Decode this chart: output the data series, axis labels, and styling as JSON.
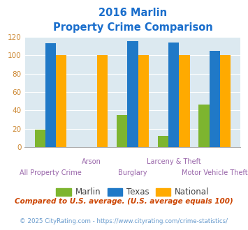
{
  "title_line1": "2016 Marlin",
  "title_line2": "Property Crime Comparison",
  "categories": [
    "All Property Crime",
    "Arson",
    "Burglary",
    "Larceny & Theft",
    "Motor Vehicle Theft"
  ],
  "marlin": [
    19,
    0,
    35,
    12,
    46
  ],
  "texas": [
    113,
    0,
    115,
    114,
    105
  ],
  "national": [
    100,
    100,
    100,
    100,
    100
  ],
  "marlin_color": "#7db52f",
  "texas_color": "#2079c7",
  "national_color": "#ffaa00",
  "title_color": "#1a6ecc",
  "xlabel_color_top": "#9966aa",
  "xlabel_color_bot": "#9966aa",
  "ytick_color": "#cc8833",
  "bg_color": "#dce9f0",
  "ylim": [
    0,
    120
  ],
  "yticks": [
    0,
    20,
    40,
    60,
    80,
    100,
    120
  ],
  "footnote1": "Compared to U.S. average. (U.S. average equals 100)",
  "footnote2": "© 2025 CityRating.com - https://www.cityrating.com/crime-statistics/",
  "footnote1_color": "#cc4400",
  "footnote2_color": "#6699cc",
  "legend_labels": [
    "Marlin",
    "Texas",
    "National"
  ],
  "group_labels_top": [
    "",
    "Arson",
    "",
    "Larceny & Theft",
    ""
  ],
  "group_labels_bot": [
    "All Property Crime",
    "",
    "Burglary",
    "",
    "Motor Vehicle Theft"
  ]
}
